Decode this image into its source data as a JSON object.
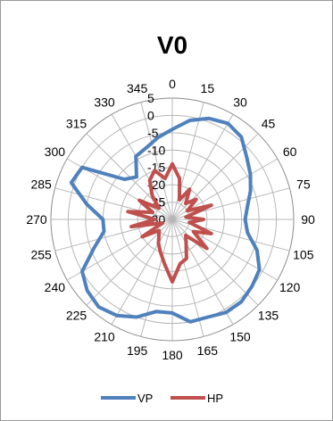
{
  "chart_data": {
    "type": "polar-line",
    "title": "V0",
    "angles_deg": [
      0,
      15,
      30,
      45,
      60,
      75,
      90,
      105,
      120,
      135,
      150,
      165,
      180,
      195,
      210,
      225,
      240,
      255,
      270,
      285,
      300,
      315,
      330,
      345
    ],
    "angle_tick_labels": [
      "0",
      "15",
      "30",
      "45",
      "60",
      "75",
      "90",
      "105",
      "120",
      "135",
      "150",
      "165",
      "180",
      "195",
      "210",
      "225",
      "240",
      "255",
      "270",
      "285",
      "300",
      "315",
      "330",
      "345"
    ],
    "radial_ticks": [
      5,
      0,
      -5,
      -10,
      -15,
      -20,
      -25,
      -30
    ],
    "radial_tick_labels": [
      "5",
      "0",
      "-5",
      "-10",
      "-15",
      "-20",
      "-25",
      "-30"
    ],
    "rlim": [
      -30,
      5
    ],
    "grid": true,
    "legend_position": "bottom",
    "series": [
      {
        "name": "VP",
        "color": "#4f81bd",
        "points": [
          [
            0,
            -4
          ],
          [
            10,
            -1
          ],
          [
            20,
            1
          ],
          [
            30,
            2
          ],
          [
            40,
            1
          ],
          [
            50,
            -2
          ],
          [
            60,
            -4
          ],
          [
            70,
            -6
          ],
          [
            80,
            -8
          ],
          [
            90,
            -9
          ],
          [
            100,
            -8
          ],
          [
            110,
            -4
          ],
          [
            120,
            -1
          ],
          [
            130,
            0
          ],
          [
            140,
            1
          ],
          [
            150,
            1
          ],
          [
            160,
            0
          ],
          [
            170,
            0
          ],
          [
            180,
            -3
          ],
          [
            190,
            -3
          ],
          [
            200,
            0
          ],
          [
            210,
            2
          ],
          [
            220,
            3
          ],
          [
            230,
            2
          ],
          [
            240,
            0
          ],
          [
            250,
            -6
          ],
          [
            260,
            -10
          ],
          [
            270,
            -10
          ],
          [
            280,
            -5
          ],
          [
            290,
            1
          ],
          [
            300,
            0
          ],
          [
            310,
            -12
          ],
          [
            320,
            -14
          ],
          [
            330,
            -9
          ],
          [
            340,
            -8
          ],
          [
            350,
            -6
          ],
          [
            360,
            -4
          ]
        ]
      },
      {
        "name": "HP",
        "color": "#c0504d",
        "points": [
          [
            0,
            -14
          ],
          [
            10,
            -18
          ],
          [
            20,
            -24
          ],
          [
            30,
            -20
          ],
          [
            40,
            -24
          ],
          [
            50,
            -21
          ],
          [
            60,
            -25
          ],
          [
            70,
            -18
          ],
          [
            80,
            -26
          ],
          [
            90,
            -21
          ],
          [
            100,
            -25
          ],
          [
            110,
            -18
          ],
          [
            120,
            -23
          ],
          [
            130,
            -17
          ],
          [
            140,
            -24
          ],
          [
            150,
            -22
          ],
          [
            160,
            -18
          ],
          [
            170,
            -17
          ],
          [
            180,
            -12
          ],
          [
            190,
            -17
          ],
          [
            200,
            -20
          ],
          [
            210,
            -22
          ],
          [
            220,
            -24
          ],
          [
            230,
            -25
          ],
          [
            240,
            -20
          ],
          [
            250,
            -27
          ],
          [
            260,
            -18
          ],
          [
            270,
            -25
          ],
          [
            280,
            -17
          ],
          [
            290,
            -24
          ],
          [
            300,
            -19
          ],
          [
            310,
            -25
          ],
          [
            320,
            -21
          ],
          [
            330,
            -17
          ],
          [
            340,
            -15
          ],
          [
            350,
            -18
          ],
          [
            360,
            -14
          ]
        ]
      }
    ]
  }
}
